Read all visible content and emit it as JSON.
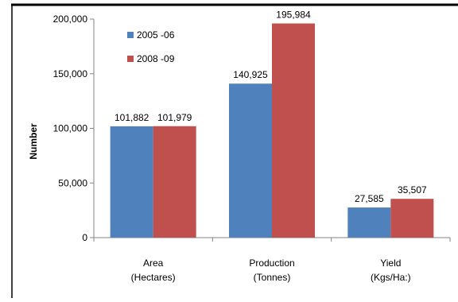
{
  "chart_data": {
    "type": "bar",
    "title": "",
    "xlabel": "",
    "ylabel": "Number",
    "ylim": [
      0,
      200000
    ],
    "yticks": [
      0,
      50000,
      100000,
      150000,
      200000
    ],
    "ytick_labels": [
      "0",
      "50,000",
      "100,000",
      "150,000",
      "200,000"
    ],
    "grid": false,
    "legend_position": "top-left",
    "categories": [
      [
        "Area",
        "(Hectares)"
      ],
      [
        "Production",
        "(Tonnes)"
      ],
      [
        "Yield",
        "(Kgs/Ha:)"
      ]
    ],
    "series": [
      {
        "name": "2005 -06",
        "color": "#4f81bd",
        "values": [
          101882,
          140925,
          27585
        ],
        "labels": [
          "101,882",
          "140,925",
          "27,585"
        ]
      },
      {
        "name": "2008 -09",
        "color": "#c0504d",
        "values": [
          101979,
          195984,
          35507
        ],
        "labels": [
          "101,979",
          "195,984",
          "35,507"
        ]
      }
    ]
  }
}
